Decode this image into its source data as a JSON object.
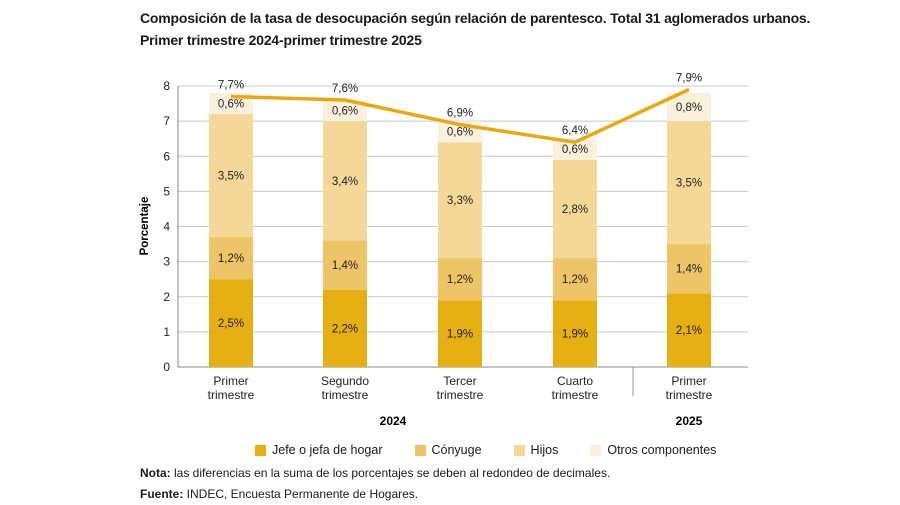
{
  "title_line1": "Composición de la tasa de desocupación según relación de parentesco. Total 31 aglomerados urbanos.",
  "title_line2": "Primer trimestre 2024-primer trimestre 2025",
  "chart_data": {
    "type": "bar",
    "stacked": true,
    "ylabel": "Porcentaje",
    "ylim": [
      0,
      8
    ],
    "yticks": [
      "0",
      "1",
      "2",
      "3",
      "4",
      "5",
      "6",
      "7",
      "8"
    ],
    "grid": true,
    "legend_position": "bottom",
    "categories": [
      [
        "Primer",
        "trimestre"
      ],
      [
        "Segundo",
        "trimestre"
      ],
      [
        "Tercer",
        "trimestre"
      ],
      [
        "Cuarto",
        "trimestre"
      ],
      [
        "Primer",
        "trimestre"
      ]
    ],
    "groups": [
      {
        "label": "2024",
        "span": [
          0,
          3
        ]
      },
      {
        "label": "2025",
        "span": [
          4,
          4
        ]
      }
    ],
    "series": [
      {
        "name": "Jefe o jefa de hogar",
        "color": "#E6AF12",
        "values": [
          2.5,
          2.2,
          1.9,
          1.9,
          2.1
        ],
        "labels": [
          "2,5%",
          "2,2%",
          "1,9%",
          "1,9%",
          "2,1%"
        ]
      },
      {
        "name": "Cónyuge",
        "color": "#EEC566",
        "values": [
          1.2,
          1.4,
          1.2,
          1.2,
          1.4
        ],
        "labels": [
          "1,2%",
          "1,4%",
          "1,2%",
          "1,2%",
          "1,4%"
        ]
      },
      {
        "name": "Hijos",
        "color": "#F5D898",
        "values": [
          3.5,
          3.4,
          3.3,
          2.8,
          3.5
        ],
        "labels": [
          "3,5%",
          "3,4%",
          "3,3%",
          "2,8%",
          "3,5%"
        ]
      },
      {
        "name": "Otros componentes",
        "color": "#FBF0DC",
        "values": [
          0.6,
          0.6,
          0.6,
          0.6,
          0.8
        ],
        "labels": [
          "0,6%",
          "0,6%",
          "0,6%",
          "0,6%",
          "0,8%"
        ]
      }
    ],
    "total_line": {
      "color": "#E8A90E",
      "values": [
        7.7,
        7.6,
        6.9,
        6.4,
        7.9
      ],
      "labels": [
        "7,7%",
        "7,6%",
        "6,9%",
        "6,4%",
        "7,9%"
      ]
    }
  },
  "note_label": "Nota:",
  "note_text": " las diferencias en la suma de los porcentajes se deben al redondeo de decimales.",
  "source_label": "Fuente:",
  "source_text": " INDEC, Encuesta Permanente de Hogares."
}
